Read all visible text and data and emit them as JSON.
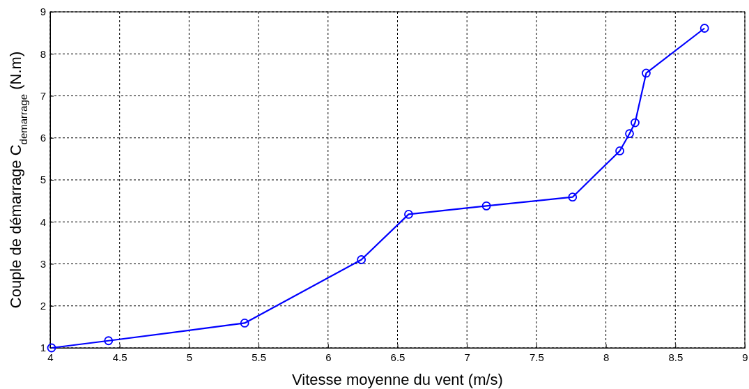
{
  "chart_data": {
    "type": "line",
    "xlabel": "Vitesse moyenne du vent (m/s)",
    "ylabel": "Couple de démarrage C$_{demarrage}$ (N.m)",
    "x": [
      4.01,
      4.42,
      5.4,
      6.24,
      6.58,
      7.14,
      7.76,
      8.1,
      8.17,
      8.21,
      8.29,
      8.71
    ],
    "series": [
      {
        "color": "#0000ff",
        "values": [
          1.0,
          1.17,
          1.59,
          3.1,
          4.18,
          4.38,
          4.59,
          5.69,
          6.1,
          6.36,
          7.54,
          8.61
        ]
      }
    ],
    "xlim": [
      4,
      9
    ],
    "xticks": [
      4,
      4.5,
      5,
      5.5,
      6,
      6.5,
      7,
      7.5,
      8,
      8.5,
      9
    ],
    "ylim": [
      1,
      9
    ],
    "yticks": [
      1,
      2,
      3,
      4,
      5,
      6,
      7,
      8,
      9
    ],
    "grid": true,
    "marker": "circle",
    "line_style": "solid"
  }
}
